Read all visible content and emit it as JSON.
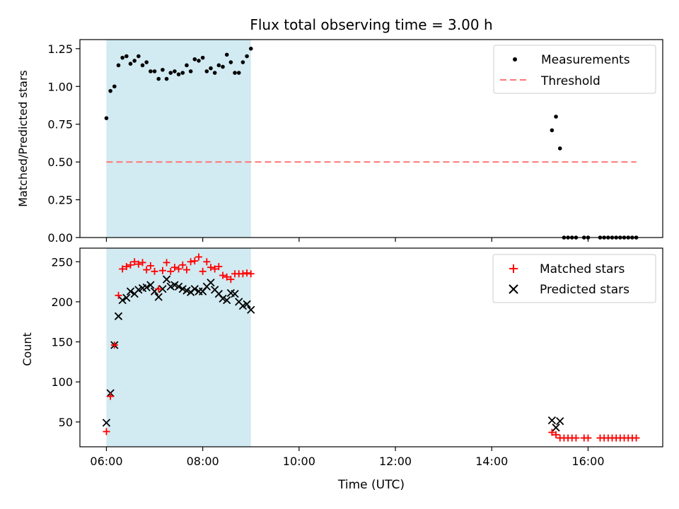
{
  "figure": {
    "title": "Flux total observing time = 3.00 h",
    "xlabel": "Time (UTC)",
    "x_tick_labels": [
      "06:00",
      "08:00",
      "10:00",
      "12:00",
      "14:00",
      "16:00"
    ],
    "x_ticks_hours": [
      6,
      8,
      10,
      12,
      14,
      16
    ],
    "xlim_hours": [
      5.45,
      17.55
    ],
    "shaded_interval_hours": [
      6.0,
      9.0
    ],
    "shade_color": "#add8e6"
  },
  "chart_data": [
    {
      "type": "scatter",
      "ylabel": "Matched/Predicted stars",
      "ylim": [
        0,
        1.31
      ],
      "y_ticks": [
        0.0,
        0.25,
        0.5,
        0.75,
        1.0,
        1.25
      ],
      "y_tick_labels": [
        "0.00",
        "0.25",
        "0.50",
        "0.75",
        "1.00",
        "1.25"
      ],
      "legend_position": "top-right",
      "series": [
        {
          "name": "Measurements",
          "kind": "scatter",
          "color": "#000000",
          "x": [
            "06:00",
            "06:05",
            "06:10",
            "06:15",
            "06:20",
            "06:25",
            "06:30",
            "06:35",
            "06:40",
            "06:45",
            "06:50",
            "06:55",
            "07:00",
            "07:05",
            "07:10",
            "07:15",
            "07:20",
            "07:25",
            "07:30",
            "07:35",
            "07:40",
            "07:45",
            "07:50",
            "07:55",
            "08:00",
            "08:05",
            "08:10",
            "08:15",
            "08:20",
            "08:25",
            "08:30",
            "08:35",
            "08:40",
            "08:45",
            "08:50",
            "08:55",
            "09:00",
            "15:15",
            "15:20",
            "15:25",
            "15:30",
            "15:35",
            "15:40",
            "15:45",
            "15:55",
            "16:00",
            "16:15",
            "16:20",
            "16:25",
            "16:30",
            "16:35",
            "16:40",
            "16:45",
            "16:50",
            "16:55",
            "17:00"
          ],
          "y": [
            0.79,
            0.97,
            1.0,
            1.14,
            1.19,
            1.2,
            1.15,
            1.17,
            1.2,
            1.14,
            1.16,
            1.1,
            1.1,
            1.05,
            1.11,
            1.05,
            1.09,
            1.1,
            1.08,
            1.09,
            1.14,
            1.1,
            1.18,
            1.17,
            1.19,
            1.1,
            1.12,
            1.09,
            1.14,
            1.13,
            1.21,
            1.16,
            1.09,
            1.09,
            1.16,
            1.2,
            1.25,
            0.71,
            0.8,
            0.59,
            0.0,
            0.0,
            0.0,
            0.0,
            0.0,
            0.0,
            0.0,
            0.0,
            0.0,
            0.0,
            0.0,
            0.0,
            0.0,
            0.0,
            0.0,
            0.0
          ]
        },
        {
          "name": "Threshold",
          "kind": "dashed-line",
          "color": "#ff7777",
          "x": [
            "06:00",
            "17:00"
          ],
          "y": [
            0.5,
            0.5
          ]
        }
      ]
    },
    {
      "type": "scatter",
      "ylabel": "Count",
      "ylim": [
        19,
        267
      ],
      "y_ticks": [
        50,
        100,
        150,
        200,
        250
      ],
      "y_tick_labels": [
        "50",
        "100",
        "150",
        "200",
        "250"
      ],
      "legend_position": "top-right",
      "series": [
        {
          "name": "Matched stars",
          "marker": "plus",
          "color": "#ff0000",
          "x": [
            "06:00",
            "06:05",
            "06:10",
            "06:15",
            "06:20",
            "06:25",
            "06:30",
            "06:35",
            "06:40",
            "06:45",
            "06:50",
            "06:55",
            "07:00",
            "07:05",
            "07:10",
            "07:15",
            "07:20",
            "07:25",
            "07:30",
            "07:35",
            "07:40",
            "07:45",
            "07:50",
            "07:55",
            "08:00",
            "08:05",
            "08:10",
            "08:15",
            "08:20",
            "08:25",
            "08:30",
            "08:35",
            "08:40",
            "08:45",
            "08:50",
            "08:55",
            "09:00",
            "15:15",
            "15:20",
            "15:25",
            "15:30",
            "15:35",
            "15:40",
            "15:45",
            "15:55",
            "16:00",
            "16:15",
            "16:20",
            "16:25",
            "16:30",
            "16:35",
            "16:40",
            "16:45",
            "16:50",
            "16:55",
            "17:00"
          ],
          "y": [
            38,
            82,
            146,
            208,
            241,
            244,
            246,
            250,
            247,
            249,
            240,
            245,
            238,
            216,
            239,
            249,
            238,
            243,
            241,
            246,
            240,
            250,
            251,
            256,
            238,
            250,
            243,
            241,
            244,
            233,
            231,
            228,
            235,
            235,
            235,
            236,
            235,
            37,
            34,
            30,
            30,
            30,
            30,
            30,
            30,
            30,
            30,
            30,
            30,
            30,
            30,
            30,
            30,
            30,
            30,
            30
          ]
        },
        {
          "name": "Predicted stars",
          "marker": "x",
          "color": "#000000",
          "x": [
            "06:00",
            "06:05",
            "06:10",
            "06:15",
            "06:20",
            "06:25",
            "06:30",
            "06:35",
            "06:40",
            "06:45",
            "06:50",
            "06:55",
            "07:00",
            "07:05",
            "07:10",
            "07:15",
            "07:20",
            "07:25",
            "07:30",
            "07:35",
            "07:40",
            "07:45",
            "07:50",
            "07:55",
            "08:00",
            "08:05",
            "08:10",
            "08:15",
            "08:20",
            "08:25",
            "08:30",
            "08:35",
            "08:40",
            "08:45",
            "08:50",
            "08:55",
            "09:00",
            "15:15",
            "15:20",
            "15:25"
          ],
          "y": [
            49,
            86,
            146,
            182,
            202,
            205,
            213,
            210,
            215,
            217,
            218,
            221,
            213,
            206,
            216,
            228,
            219,
            221,
            219,
            216,
            214,
            212,
            216,
            213,
            213,
            219,
            224,
            215,
            210,
            204,
            202,
            211,
            210,
            200,
            195,
            197,
            190,
            52,
            43,
            51
          ]
        }
      ]
    }
  ]
}
